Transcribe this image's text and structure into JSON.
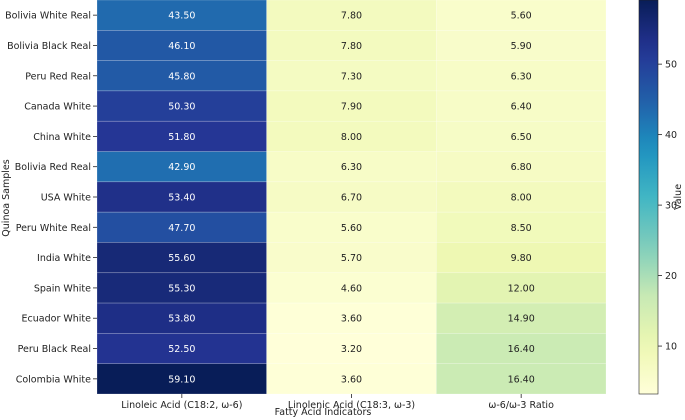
{
  "chart_data": {
    "type": "heatmap",
    "title": "",
    "xlabel": "Fatty Acid Indicators",
    "ylabel": "Quinoa Samples",
    "columns": [
      "Linoleic Acid (C18:2, ω-6)",
      "Linolenic Acid (C18:3, ω-3)",
      "ω-6/ω-3 Ratio"
    ],
    "rows": [
      "Bolivia White Real",
      "Bolivia Black Real",
      "Peru Red Real",
      "Canada White",
      "China White",
      "Bolivia Red Real",
      "USA White",
      "Peru White Real",
      "India White",
      "Spain White",
      "Ecuador White",
      "Peru Black Real",
      "Colombia White"
    ],
    "values": [
      [
        43.5,
        7.8,
        5.6
      ],
      [
        46.1,
        7.8,
        5.9
      ],
      [
        45.8,
        7.3,
        6.3
      ],
      [
        50.3,
        7.9,
        6.4
      ],
      [
        51.8,
        8.0,
        6.5
      ],
      [
        42.9,
        6.3,
        6.8
      ],
      [
        53.4,
        6.7,
        8.0
      ],
      [
        47.7,
        5.6,
        8.5
      ],
      [
        55.6,
        5.7,
        9.8
      ],
      [
        55.3,
        4.6,
        12.0
      ],
      [
        53.8,
        3.6,
        14.9
      ],
      [
        52.5,
        3.2,
        16.4
      ],
      [
        59.1,
        3.6,
        16.4
      ]
    ],
    "value_format": "0.00",
    "colormap": "YlGnBu",
    "color_range": [
      3.2,
      59.1
    ],
    "colorbar": {
      "label": "Value",
      "ticks": [
        10,
        20,
        30,
        40,
        50
      ]
    }
  }
}
